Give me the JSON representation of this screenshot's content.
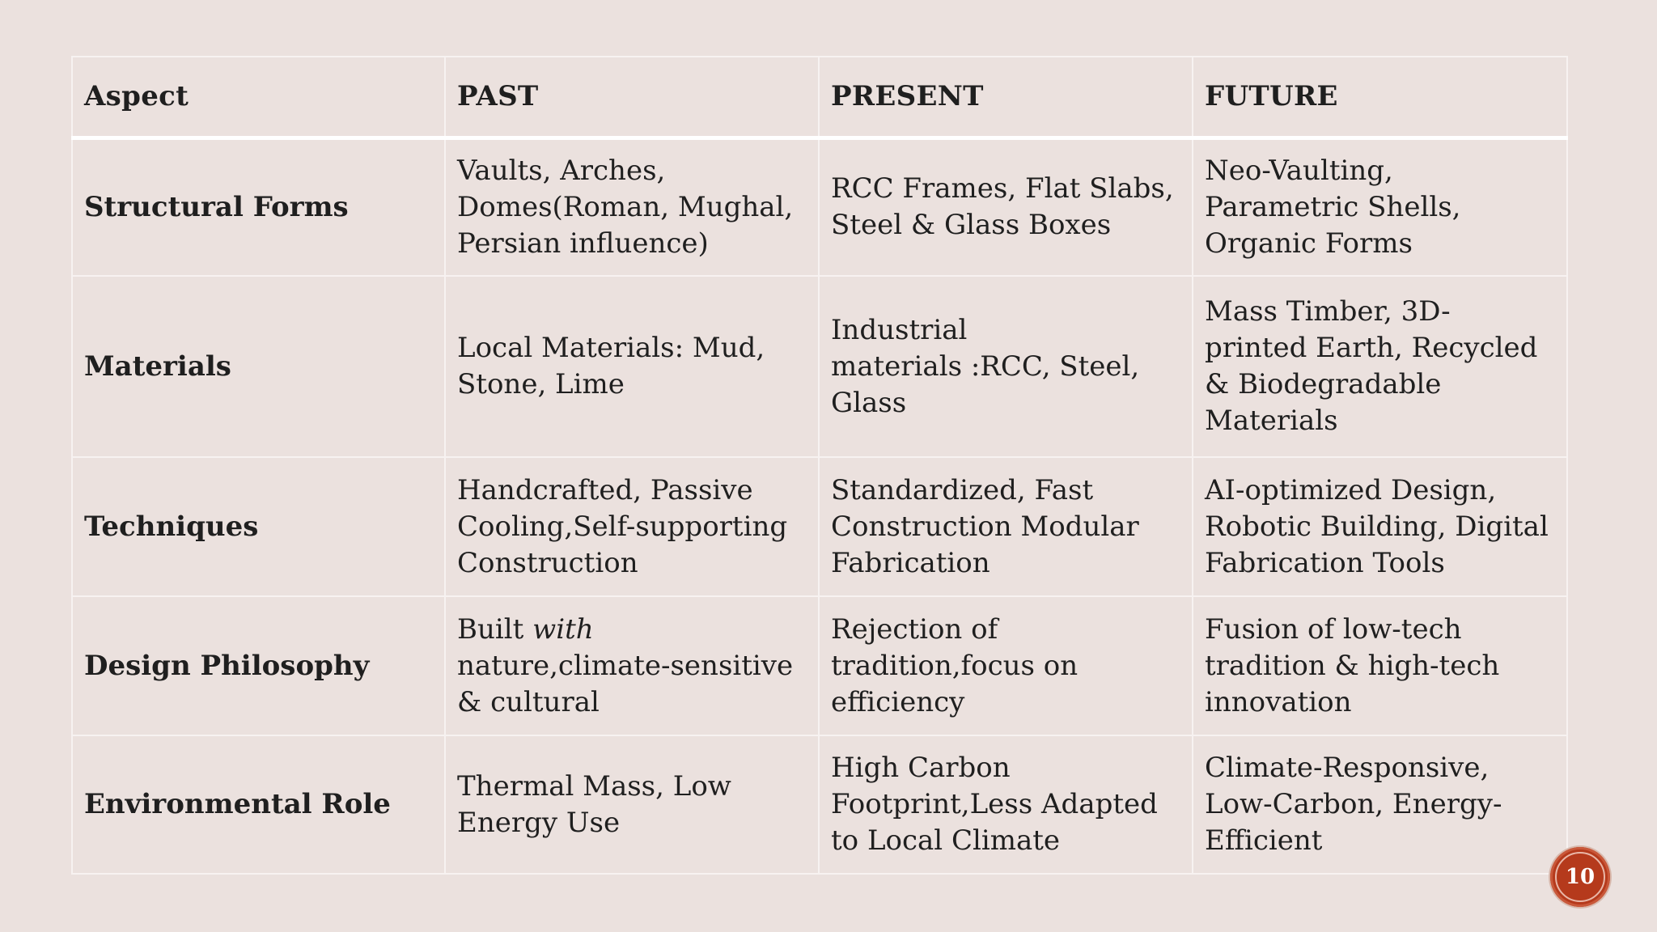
{
  "table": {
    "headers": [
      "Aspect",
      "PAST",
      "PRESENT",
      "FUTURE"
    ],
    "rows": [
      {
        "aspect": "Structural Forms",
        "past": [
          "Vaults, Arches,",
          "Domes(Roman, Mughal,",
          "Persian influence)"
        ],
        "present": [
          "RCC Frames, Flat Slabs,",
          "Steel & Glass Boxes"
        ],
        "future": [
          "Neo-Vaulting,",
          "Parametric Shells,",
          "Organic Forms"
        ]
      },
      {
        "aspect": "Materials",
        "past": [
          "Local Materials: Mud,",
          "Stone, Lime"
        ],
        "present": [
          "Industrial",
          "materials :RCC, Steel,",
          "Glass"
        ],
        "future": [
          "Mass Timber, 3D-",
          "printed Earth, Recycled",
          "& Biodegradable",
          "Materials"
        ]
      },
      {
        "aspect": "Techniques",
        "past": [
          "Handcrafted, Passive",
          "Cooling,Self-supporting",
          "Construction"
        ],
        "present": [
          "Standardized, Fast",
          "Construction Modular",
          "Fabrication"
        ],
        "future": [
          "AI-optimized Design,",
          "Robotic Building, Digital",
          "Fabrication Tools"
        ]
      },
      {
        "aspect": "Design Philosophy",
        "past": {
          "prefix": "Built ",
          "emphasis": "with",
          "lines": [
            "nature,climate-sensitive",
            "& cultural"
          ]
        },
        "present": [
          "Rejection of",
          "tradition,focus on",
          "efficiency"
        ],
        "future": [
          "Fusion of low-tech",
          "tradition & high-tech",
          "innovation"
        ]
      },
      {
        "aspect": "Environmental Role",
        "past": [
          "Thermal Mass, Low",
          "Energy Use"
        ],
        "present": [
          "High Carbon",
          "Footprint,Less Adapted",
          "to Local Climate"
        ],
        "future": [
          "Climate-Responsive,",
          "Low-Carbon, Energy-",
          "Efficient"
        ]
      }
    ]
  },
  "page": {
    "number": "10",
    "badge_color": "#b53a1c"
  }
}
